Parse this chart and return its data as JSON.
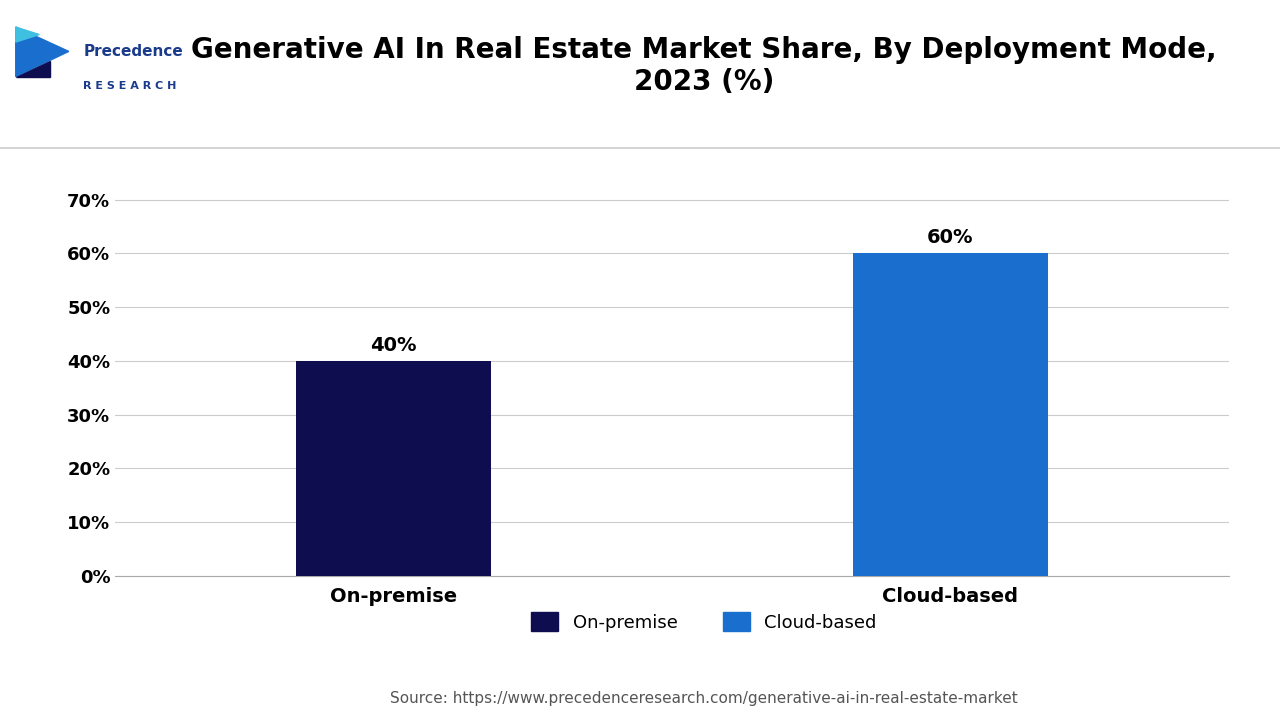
{
  "title": "Generative AI In Real Estate Market Share, By Deployment Mode,\n2023 (%)",
  "categories": [
    "On-premise",
    "Cloud-based"
  ],
  "values": [
    40,
    60
  ],
  "bar_colors": [
    "#0d0d4f",
    "#1a6fce"
  ],
  "yticks": [
    0,
    10,
    20,
    30,
    40,
    50,
    60,
    70
  ],
  "ytick_labels": [
    "0%",
    "10%",
    "20%",
    "30%",
    "40%",
    "50%",
    "60%",
    "70%"
  ],
  "ylim": [
    0,
    75
  ],
  "bar_labels": [
    "40%",
    "60%"
  ],
  "legend_labels": [
    "On-premise",
    "Cloud-based"
  ],
  "legend_colors": [
    "#0d0d4f",
    "#1a6fce"
  ],
  "source_text": "Source: https://www.precedenceresearch.com/generative-ai-in-real-estate-market",
  "background_color": "#ffffff",
  "title_fontsize": 20,
  "tick_fontsize": 13,
  "label_fontsize": 14,
  "bar_label_fontsize": 14,
  "legend_fontsize": 13,
  "source_fontsize": 11,
  "logo_text1": "Precedence",
  "logo_text2": "R E S E A R C H",
  "logo_color": "#1a3a8a",
  "separator_color": "#cccccc"
}
